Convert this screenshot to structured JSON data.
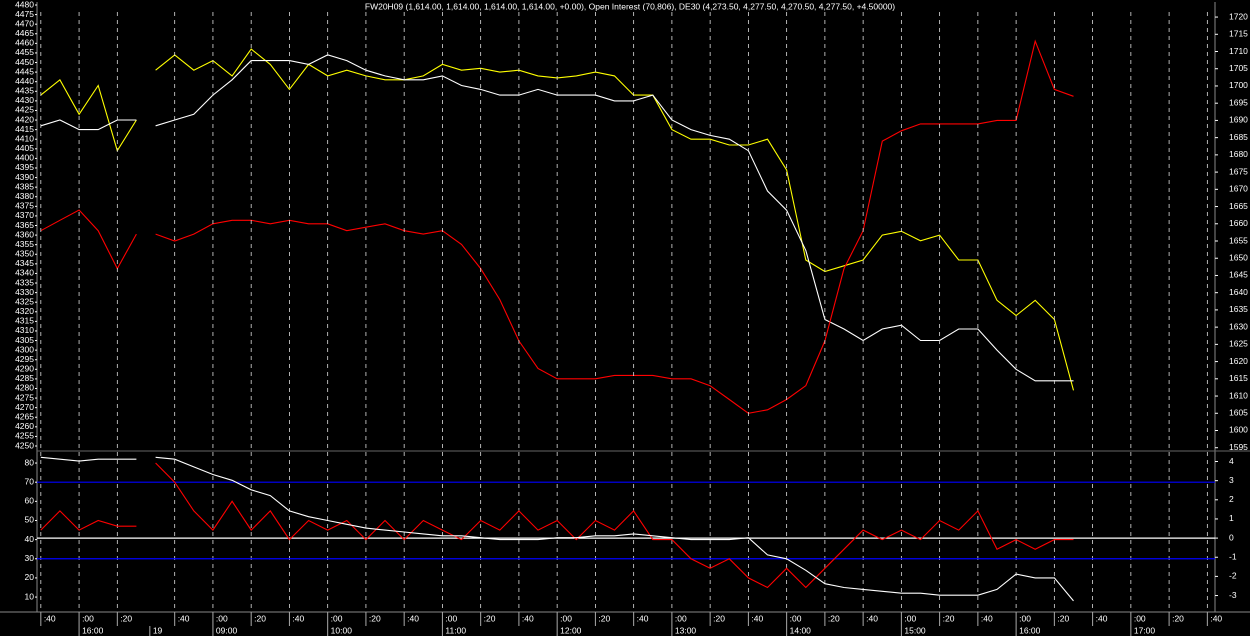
{
  "chart_data": [
    {
      "type": "line",
      "title": "FW20H09 (1,614.00, 1,614.00, 1,614.00, 1,614.00, +0.00), Open Interest (70,806), DE30 (4,273.50, 4,277.50, 4,270.50, 4,277.50, +4.50000)",
      "x": [
        0,
        0.5,
        1,
        1.5,
        2,
        2.5,
        2.75,
        3,
        3.5,
        4,
        4.5,
        5,
        5.5,
        6,
        6.5,
        7,
        7.5,
        8,
        8.5,
        9,
        9.5,
        10,
        10.5,
        11,
        11.5,
        12,
        12.5,
        13,
        13.5,
        14,
        14.5,
        15,
        15.5,
        16,
        16.5,
        17,
        17.5,
        18,
        18.5,
        19,
        19.5,
        20,
        20.5,
        21,
        21.5,
        22,
        22.5,
        23,
        23.5,
        24,
        24.5,
        25,
        25.5,
        26,
        26.5,
        27
      ],
      "xlim": [
        -0.1,
        30.7
      ],
      "ylim": [
        4250,
        4480
      ],
      "yticks": [
        4250,
        4255,
        4260,
        4265,
        4270,
        4275,
        4280,
        4285,
        4290,
        4295,
        4300,
        4305,
        4310,
        4315,
        4320,
        4325,
        4330,
        4335,
        4340,
        4345,
        4350,
        4355,
        4360,
        4365,
        4370,
        4375,
        4380,
        4385,
        4390,
        4395,
        4400,
        4405,
        4410,
        4415,
        4420,
        4425,
        4430,
        4435,
        4440,
        4445,
        4450,
        4455,
        4460,
        4465,
        4470,
        4475,
        4480
      ],
      "y2lim": [
        1595.5,
        1723.5
      ],
      "y2ticks": [
        1595,
        1600,
        1605,
        1610,
        1615,
        1620,
        1625,
        1630,
        1635,
        1640,
        1645,
        1650,
        1655,
        1660,
        1665,
        1670,
        1675,
        1680,
        1685,
        1690,
        1695,
        1700,
        1705,
        1710,
        1715,
        1720
      ],
      "series": [
        {
          "color": "#ffff00",
          "values": [
            4433,
            4441,
            4423,
            4438,
            4404,
            4420,
            null,
            4446,
            4454,
            4446,
            4451,
            4443,
            4457,
            4449,
            4436,
            4449,
            4443,
            4446,
            4443,
            4441,
            4441,
            4443,
            4449,
            4446,
            4447,
            4445,
            4446,
            4443,
            4442,
            4443,
            4445,
            4443,
            4433,
            4433,
            4415,
            4410,
            4410,
            4407,
            4407,
            4410,
            4394,
            4347,
            4341,
            4344,
            4347,
            4360,
            4362,
            4357,
            4360,
            4347,
            4347,
            4326,
            4318,
            4326,
            4316,
            4279
          ]
        },
        {
          "color": "#ffffff",
          "values": [
            4417,
            4420,
            4415,
            4415,
            4420,
            4420,
            null,
            4417,
            4420,
            4423,
            4433,
            4441,
            4451,
            4451,
            4451,
            4449,
            4454,
            4451,
            4446,
            4443,
            4441,
            4441,
            4443,
            4438,
            4436,
            4433,
            4433,
            4436,
            4433,
            4433,
            4433,
            4430,
            4430,
            4433,
            4420,
            4415,
            4412,
            4410,
            4404,
            4383,
            4373,
            4352,
            4316,
            4311,
            4305,
            4311,
            4313,
            4305,
            4305,
            4311,
            4311,
            4300,
            4290,
            4284,
            4284,
            4284
          ]
        },
        {
          "color": "#ff0000",
          "axis": "y2",
          "values": [
            1658,
            1661,
            1664,
            1658,
            1647,
            1657,
            null,
            1657,
            1655,
            1657,
            1660,
            1661,
            1661,
            1660,
            1661,
            1660,
            1660,
            1658,
            1659,
            1660,
            1658,
            1657,
            1658,
            1654,
            1647,
            1638,
            1626,
            1618,
            1615,
            1615,
            1615,
            1616,
            1616,
            1616,
            1615,
            1615,
            1613,
            1609,
            1605,
            1606,
            1609,
            1613,
            1626,
            1647,
            1658,
            1684,
            1687,
            1689,
            1689,
            1689,
            1689,
            1690,
            1690,
            1713,
            1699,
            1697
          ]
        }
      ]
    },
    {
      "type": "line",
      "x": [
        0,
        0.5,
        1,
        1.5,
        2,
        2.5,
        2.75,
        3,
        3.5,
        4,
        4.5,
        5,
        5.5,
        6,
        6.5,
        7,
        7.5,
        8,
        8.5,
        9,
        9.5,
        10,
        10.5,
        11,
        11.5,
        12,
        12.5,
        13,
        13.5,
        14,
        14.5,
        15,
        15.5,
        16,
        16.5,
        17,
        17.5,
        18,
        18.5,
        19,
        19.5,
        20,
        20.5,
        21,
        21.5,
        22,
        22.5,
        23,
        23.5,
        24,
        24.5,
        25,
        25.5,
        26,
        26.5,
        27
      ],
      "xlim": [
        -0.1,
        30.7
      ],
      "xticks": [
        {
          "value": 0,
          "label": ":40"
        },
        {
          "value": 1,
          "label": ":00"
        },
        {
          "value": 2,
          "label": ":20"
        },
        {
          "value": 3.5,
          "label": ":40"
        },
        {
          "value": 4.5,
          "label": ":00"
        },
        {
          "value": 5.5,
          "label": ":20"
        },
        {
          "value": 6.5,
          "label": ":40"
        },
        {
          "value": 7.5,
          "label": ":00"
        },
        {
          "value": 8.5,
          "label": ":20"
        },
        {
          "value": 9.5,
          "label": ":40"
        },
        {
          "value": 10.5,
          "label": ":00"
        },
        {
          "value": 11.5,
          "label": ":20"
        },
        {
          "value": 12.5,
          "label": ":40"
        },
        {
          "value": 13.5,
          "label": ":00"
        },
        {
          "value": 14.5,
          "label": ":20"
        },
        {
          "value": 15.5,
          "label": ":40"
        },
        {
          "value": 16.5,
          "label": ":00"
        },
        {
          "value": 17.5,
          "label": ":20"
        },
        {
          "value": 18.5,
          "label": ":40"
        },
        {
          "value": 19.5,
          "label": ":00"
        },
        {
          "value": 20.5,
          "label": ":20"
        },
        {
          "value": 21.5,
          "label": ":40"
        },
        {
          "value": 22.5,
          "label": ":00"
        },
        {
          "value": 23.5,
          "label": ":20"
        },
        {
          "value": 24.5,
          "label": ":40"
        },
        {
          "value": 25.5,
          "label": ":00"
        },
        {
          "value": 26.5,
          "label": ":20"
        },
        {
          "value": 27.5,
          "label": ":40"
        },
        {
          "value": 28.5,
          "label": ":00"
        },
        {
          "value": 29.5,
          "label": ":20"
        },
        {
          "value": 30.5,
          "label": ":40"
        }
      ],
      "hour_labels": [
        {
          "value": 1,
          "label": "16:00"
        },
        {
          "value": 2.85,
          "label": "19"
        },
        {
          "value": 4.5,
          "label": "09:00"
        },
        {
          "value": 7.5,
          "label": "10:00"
        },
        {
          "value": 10.5,
          "label": "11:00"
        },
        {
          "value": 13.5,
          "label": "12:00"
        },
        {
          "value": 16.5,
          "label": "13:00"
        },
        {
          "value": 19.5,
          "label": "14:00"
        },
        {
          "value": 22.5,
          "label": "15:00"
        },
        {
          "value": 25.5,
          "label": "16:00"
        },
        {
          "value": 28.5,
          "label": "17:00"
        }
      ],
      "ylim": [
        2.2,
        84.2
      ],
      "yticks": [
        10,
        20,
        30,
        40,
        50,
        60,
        70,
        80
      ],
      "y2lim": [
        -3.86,
        4.34
      ],
      "y2ticks": [
        4,
        3,
        2,
        1,
        0,
        -1,
        -2,
        -3
      ],
      "hlines": [
        {
          "value": 70,
          "color": "#0000ff"
        },
        {
          "value": 30,
          "color": "#0000ff"
        },
        {
          "value": 0,
          "axis": "y2",
          "color": "#ffffff"
        }
      ],
      "series": [
        {
          "color": "#ff0000",
          "values": [
            45,
            55,
            45,
            50,
            47,
            47,
            null,
            80,
            70,
            55,
            45,
            60,
            45,
            55,
            40,
            50,
            45,
            50,
            40,
            50,
            40,
            50,
            45,
            40,
            50,
            45,
            55,
            45,
            50,
            40,
            50,
            45,
            55,
            40,
            40,
            30,
            25,
            30,
            20,
            15,
            25,
            15,
            25,
            35,
            45,
            40,
            45,
            40,
            50,
            45,
            55,
            35,
            40,
            35,
            40,
            40
          ]
        },
        {
          "color": "#ffffff",
          "values": [
            83,
            82,
            81,
            82,
            82,
            82,
            null,
            83,
            82,
            78,
            74,
            71,
            66,
            63,
            55,
            52,
            50,
            48,
            46,
            45,
            44,
            43,
            42,
            42,
            41,
            40,
            40,
            40,
            41,
            41,
            42,
            42,
            43,
            42,
            41,
            40,
            40,
            40,
            41,
            32,
            30,
            24,
            17,
            15,
            14,
            13,
            12,
            12,
            11,
            11,
            11,
            14,
            22,
            20,
            20,
            8
          ]
        }
      ]
    }
  ]
}
